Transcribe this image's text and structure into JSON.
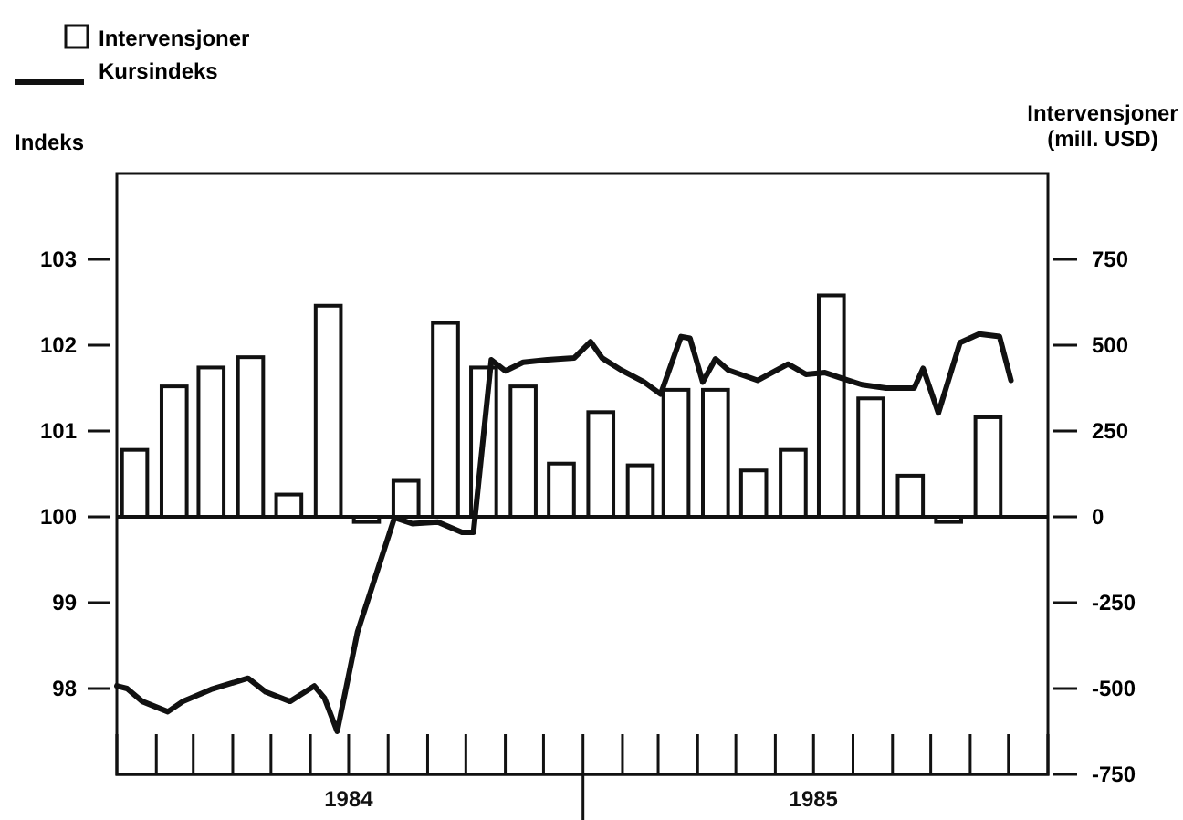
{
  "chart_data": {
    "type": "bar",
    "ylabel": "Indeks",
    "y2label": "Intervensjoner\n(mill. USD)",
    "legend": "top left",
    "xlim": [
      "1984-01-01",
      "1986-01-01"
    ],
    "xticks": [
      {
        "value": "1984-02",
        "label": null
      },
      {
        "value": "1984-03",
        "label": null
      },
      {
        "value": "1984-04",
        "label": null
      },
      {
        "value": "1984-05",
        "label": null
      },
      {
        "value": "1984-06",
        "label": null
      },
      {
        "value": "1984-07",
        "label": "1984"
      },
      {
        "value": "1984-08",
        "label": null
      },
      {
        "value": "1984-09",
        "label": null
      },
      {
        "value": "1984-10",
        "label": null
      },
      {
        "value": "1984-11",
        "label": null
      },
      {
        "value": "1984-12",
        "label": null
      },
      {
        "value": "1985-01",
        "label": null
      },
      {
        "value": "1985-02",
        "label": null
      },
      {
        "value": "1985-03",
        "label": null
      },
      {
        "value": "1985-04",
        "label": null
      },
      {
        "value": "1985-05",
        "label": null
      },
      {
        "value": "1985-06",
        "label": null
      },
      {
        "value": "1985-07",
        "label": "1985"
      },
      {
        "value": "1985-08",
        "label": null
      },
      {
        "value": "1985-09",
        "label": null
      },
      {
        "value": "1985-10",
        "label": null
      },
      {
        "value": "1985-11",
        "label": null
      },
      {
        "value": "1985-12",
        "label": null
      }
    ],
    "ylim": [
      97,
      104
    ],
    "yticks": [
      98,
      99,
      100,
      101,
      102,
      103
    ],
    "y2lim": [
      -750,
      1000
    ],
    "y2ticks": [
      -750,
      -500,
      -250,
      0,
      250,
      500,
      750
    ],
    "ref_lines": [
      {
        "axis": "y",
        "value": 100
      }
    ],
    "series": [
      {
        "name": "Intervensjoner",
        "axis": "y2",
        "color": "#ffffff",
        "x": [
          "1984-01-15",
          "1984-02-15",
          "1984-03-15",
          "1984-04-15",
          "1984-05-15",
          "1984-06-15",
          "1984-07-15",
          "1984-08-15",
          "1984-09-15",
          "1984-10-15",
          "1984-11-15",
          "1984-12-15",
          "1985-01-15",
          "1985-02-15",
          "1985-03-15",
          "1985-04-15",
          "1985-05-15",
          "1985-06-15",
          "1985-07-15",
          "1985-08-15",
          "1985-09-15",
          "1985-10-15",
          "1985-11-15",
          "1985-12-15"
        ],
        "values": [
          195,
          380,
          435,
          465,
          65,
          615,
          -15,
          105,
          565,
          435,
          380,
          155,
          305,
          150,
          370,
          370,
          135,
          195,
          645,
          345,
          120,
          -15,
          290,
          0
        ]
      },
      {
        "name": "Kursindeks",
        "type": "line",
        "axis": "y",
        "color": "#111111",
        "x": [
          "1984-01-01",
          "1984-01-09",
          "1984-01-21",
          "1984-02-10",
          "1984-02-22",
          "1984-03-15",
          "1984-04-13",
          "1984-04-27",
          "1984-05-16",
          "1984-06-04",
          "1984-06-12",
          "1984-06-22",
          "1984-07-08",
          "1984-08-06",
          "1984-08-20",
          "1984-09-09",
          "1984-09-28",
          "1984-10-07",
          "1984-10-21",
          "1984-11-01",
          "1984-11-15",
          "1984-12-04",
          "1984-12-25",
          "1985-01-07",
          "1985-01-16",
          "1985-01-31",
          "1985-02-18",
          "1985-03-03",
          "1985-03-19",
          "1985-03-26",
          "1985-04-05",
          "1985-04-15",
          "1985-04-25",
          "1985-05-18",
          "1985-06-11",
          "1985-06-25",
          "1985-07-10",
          "1985-07-24",
          "1985-08-08",
          "1985-08-27",
          "1985-09-18",
          "1985-09-25",
          "1985-10-07",
          "1985-10-24",
          "1985-11-08",
          "1985-11-24",
          "1985-12-03"
        ],
        "values": [
          98.03,
          98.0,
          97.85,
          97.73,
          97.85,
          97.99,
          98.12,
          97.96,
          97.85,
          98.03,
          97.89,
          97.5,
          98.66,
          99.99,
          99.92,
          99.94,
          99.82,
          99.82,
          101.83,
          101.7,
          101.8,
          101.83,
          101.85,
          102.04,
          101.85,
          101.71,
          101.57,
          101.43,
          102.1,
          102.08,
          101.57,
          101.84,
          101.71,
          101.59,
          101.78,
          101.66,
          101.68,
          101.61,
          101.54,
          101.5,
          101.5,
          101.73,
          101.21,
          102.03,
          102.13,
          102.1,
          101.59
        ]
      }
    ]
  }
}
